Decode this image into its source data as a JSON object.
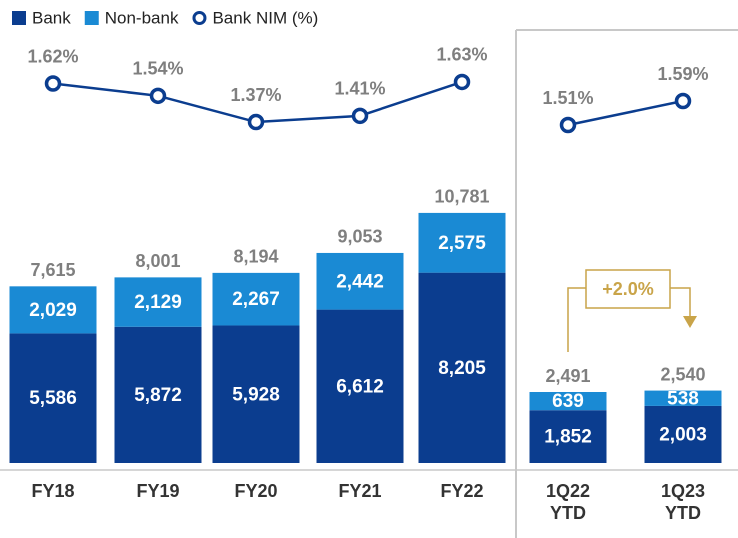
{
  "chart_data": [
    {
      "type": "bar",
      "stacked": true,
      "categories": [
        "FY18",
        "FY19",
        "FY20",
        "FY21",
        "FY22"
      ],
      "series": [
        {
          "name": "Bank",
          "color": "#0b3d8f",
          "values": [
            5586,
            5872,
            5928,
            6612,
            8205
          ],
          "value_labels": [
            "5,586",
            "5,872",
            "5,928",
            "6,612",
            "8,205"
          ]
        },
        {
          "name": "Non-bank",
          "color": "#1a8ad4",
          "values": [
            2029,
            2129,
            2267,
            2442,
            2575
          ],
          "value_labels": [
            "2,029",
            "2,129",
            "2,267",
            "2,442",
            "2,575"
          ]
        }
      ],
      "totals": [
        7615,
        8001,
        8194,
        9053,
        10781
      ],
      "total_labels": [
        "7,615",
        "8,001",
        "8,194",
        "9,053",
        "10,781"
      ],
      "line": {
        "name": "Bank NIM (%)",
        "color": "#0b3d8f",
        "values": [
          1.62,
          1.54,
          1.37,
          1.41,
          1.63
        ],
        "value_labels": [
          "1.62%",
          "1.54%",
          "1.37%",
          "1.41%",
          "1.63%"
        ]
      }
    },
    {
      "type": "bar",
      "stacked": true,
      "categories": [
        "1Q22 YTD",
        "1Q23 YTD"
      ],
      "series": [
        {
          "color": "#0b3d8f",
          "values": [
            1852,
            2003
          ],
          "value_labels": [
            "1,852",
            "2,003"
          ]
        },
        {
          "color": "#1a8ad4",
          "values": [
            639,
            538
          ],
          "value_labels": [
            "639",
            "538"
          ]
        }
      ],
      "totals": [
        2491,
        2540
      ],
      "total_labels": [
        "2,491",
        "2,540"
      ],
      "line": {
        "color": "#0b3d8f",
        "values": [
          1.51,
          1.59
        ],
        "value_labels": [
          "1.51%",
          "1.59%"
        ]
      },
      "annotation": "+2.0%"
    }
  ]
}
